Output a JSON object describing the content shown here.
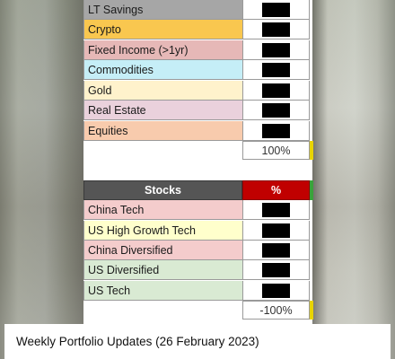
{
  "allocation_rows": [
    {
      "label": "LT Savings",
      "color": "#a6a6a6"
    },
    {
      "label": "Crypto",
      "color": "#f9c74f"
    },
    {
      "label": "Fixed Income (>1yr)",
      "color": "#e6b8b7"
    },
    {
      "label": "Commodities",
      "color": "#c5eef7"
    },
    {
      "label": "Gold",
      "color": "#fff2cc"
    },
    {
      "label": "Real Estate",
      "color": "#ead1dc"
    },
    {
      "label": "Equities",
      "color": "#f8cbad"
    }
  ],
  "allocation_total": "100%",
  "stocks_header": {
    "label": "Stocks",
    "value": "%"
  },
  "stock_rows": [
    {
      "label": "China Tech",
      "color": "#f4cccc"
    },
    {
      "label": "US High Growth Tech",
      "color": "#ffffcc"
    },
    {
      "label": "China Diversified",
      "color": "#f4cccc"
    },
    {
      "label": "US Diversified",
      "color": "#d9ead3"
    },
    {
      "label": "US Tech",
      "color": "#d9ead3"
    }
  ],
  "stocks_total": "-100%",
  "caption": "Weekly Portfolio Updates (26 February 2023)"
}
